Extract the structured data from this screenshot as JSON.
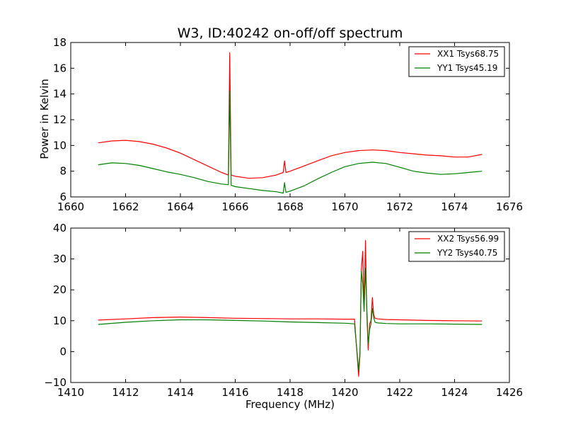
{
  "chart_data": [
    {
      "type": "line",
      "title": "W3, ID:40242 on-off/off spectrum",
      "xlabel": "",
      "ylabel": "Power in Kelvin",
      "xlim": [
        1660,
        1676
      ],
      "ylim": [
        6,
        18
      ],
      "xticks": [
        "1660",
        "1662",
        "1664",
        "1666",
        "1668",
        "1670",
        "1672",
        "1674",
        "1676"
      ],
      "yticks": [
        "6",
        "8",
        "10",
        "12",
        "14",
        "16",
        "18"
      ],
      "grid": false,
      "legend_position": "top-right",
      "series": [
        {
          "name": "XX1 Tsys68.75",
          "color": "#ff0000",
          "x": [
            1661.0,
            1661.5,
            1662.0,
            1662.5,
            1663.0,
            1663.5,
            1664.0,
            1664.5,
            1665.0,
            1665.5,
            1665.75,
            1665.8,
            1665.85,
            1666.0,
            1666.5,
            1667.0,
            1667.5,
            1667.75,
            1667.8,
            1667.85,
            1668.0,
            1668.5,
            1669.0,
            1669.5,
            1670.0,
            1670.5,
            1671.0,
            1671.5,
            1672.0,
            1672.5,
            1673.0,
            1673.5,
            1674.0,
            1674.5,
            1675.0
          ],
          "y": [
            10.2,
            10.35,
            10.4,
            10.3,
            10.1,
            9.8,
            9.4,
            8.9,
            8.4,
            7.9,
            7.7,
            17.2,
            7.7,
            7.6,
            7.45,
            7.5,
            7.7,
            7.9,
            8.8,
            7.9,
            8.0,
            8.4,
            8.8,
            9.2,
            9.45,
            9.6,
            9.65,
            9.6,
            9.45,
            9.35,
            9.25,
            9.2,
            9.1,
            9.1,
            9.3
          ]
        },
        {
          "name": "YY1 Tsys45.19",
          "color": "#008000",
          "x": [
            1661.0,
            1661.5,
            1662.0,
            1662.5,
            1663.0,
            1663.5,
            1664.0,
            1664.5,
            1665.0,
            1665.5,
            1665.75,
            1665.8,
            1665.85,
            1666.0,
            1666.5,
            1667.0,
            1667.5,
            1667.75,
            1667.8,
            1667.85,
            1668.0,
            1668.5,
            1669.0,
            1669.5,
            1670.0,
            1670.5,
            1671.0,
            1671.5,
            1672.0,
            1672.5,
            1673.0,
            1673.5,
            1674.0,
            1674.5,
            1675.0
          ],
          "y": [
            8.5,
            8.65,
            8.6,
            8.45,
            8.2,
            7.95,
            7.75,
            7.5,
            7.2,
            7.0,
            6.95,
            14.2,
            6.9,
            6.8,
            6.65,
            6.5,
            6.4,
            6.3,
            7.1,
            6.35,
            6.45,
            6.85,
            7.4,
            7.9,
            8.35,
            8.6,
            8.7,
            8.6,
            8.3,
            8.0,
            7.85,
            7.75,
            7.8,
            7.9,
            8.0
          ]
        }
      ]
    },
    {
      "type": "line",
      "title": "",
      "xlabel": "Frequency (MHz)",
      "ylabel": "",
      "xlim": [
        1410,
        1426
      ],
      "ylim": [
        -10,
        40
      ],
      "xticks": [
        "1410",
        "1412",
        "1414",
        "1416",
        "1418",
        "1420",
        "1422",
        "1424",
        "1426"
      ],
      "yticks": [
        "−10",
        "0",
        "10",
        "20",
        "30",
        "40"
      ],
      "grid": false,
      "legend_position": "top-right",
      "series": [
        {
          "name": "XX2 Tsys56.99",
          "color": "#ff0000",
          "x": [
            1411.0,
            1412.0,
            1413.0,
            1414.0,
            1415.0,
            1416.0,
            1417.0,
            1418.0,
            1419.0,
            1420.0,
            1420.35,
            1420.5,
            1420.55,
            1420.6,
            1420.65,
            1420.7,
            1420.75,
            1420.8,
            1420.85,
            1420.9,
            1420.95,
            1421.0,
            1421.05,
            1421.1,
            1421.2,
            1421.5,
            1422.0,
            1423.0,
            1424.0,
            1425.0
          ],
          "y": [
            10.2,
            10.6,
            11.0,
            11.2,
            11.0,
            10.8,
            10.7,
            10.6,
            10.6,
            10.5,
            10.5,
            -8.0,
            -1.0,
            26.5,
            32.5,
            15.0,
            36.0,
            12.0,
            0.5,
            9.0,
            10.0,
            17.5,
            12.0,
            10.8,
            10.6,
            10.4,
            10.3,
            10.1,
            10.0,
            9.9
          ]
        },
        {
          "name": "YY2 Tsys40.75",
          "color": "#008000",
          "x": [
            1411.0,
            1412.0,
            1413.0,
            1414.0,
            1415.0,
            1416.0,
            1417.0,
            1418.0,
            1419.0,
            1420.0,
            1420.35,
            1420.5,
            1420.55,
            1420.6,
            1420.65,
            1420.7,
            1420.75,
            1420.8,
            1420.85,
            1420.9,
            1420.95,
            1421.0,
            1421.05,
            1421.1,
            1421.2,
            1421.5,
            1422.0,
            1423.0,
            1424.0,
            1425.0
          ],
          "y": [
            8.8,
            9.5,
            10.0,
            10.3,
            10.3,
            10.1,
            9.9,
            9.6,
            9.4,
            9.2,
            9.0,
            -6.0,
            0.0,
            26.0,
            22.0,
            13.0,
            27.0,
            14.0,
            2.5,
            7.0,
            9.0,
            14.0,
            11.0,
            9.5,
            9.3,
            9.1,
            9.0,
            9.0,
            8.9,
            8.8
          ]
        }
      ]
    }
  ]
}
